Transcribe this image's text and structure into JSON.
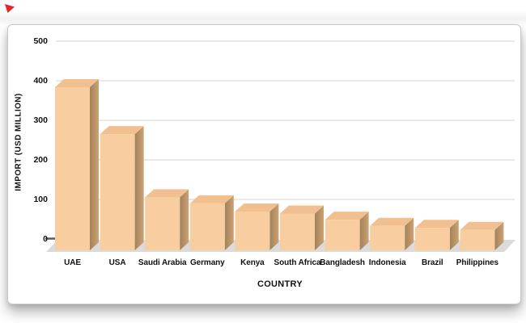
{
  "page": {
    "background": "#ffffff",
    "red_marker_color": "#e2262c"
  },
  "panel": {
    "background": "#ffffff",
    "border_color": "#c9c9c9"
  },
  "chart_data": {
    "type": "bar",
    "style": "3d-column",
    "title": "",
    "xlabel": "COUNTRY",
    "ylabel": "IMPORT (USD MILLION)",
    "categories": [
      "UAE",
      "USA",
      "Saudi Arabia",
      "Germany",
      "Kenya",
      "South Africa",
      "Bangladesh",
      "Indonesia",
      "Brazil",
      "Philippines"
    ],
    "values": [
      400,
      285,
      130,
      115,
      95,
      90,
      75,
      60,
      55,
      50
    ],
    "y_ticks": [
      0,
      100,
      200,
      300,
      400,
      500
    ],
    "ylim": [
      0,
      500
    ],
    "grid": true,
    "legend": "none",
    "colors": {
      "bar_front": "#f8cd9f",
      "bar_top": "#f2bf90",
      "bar_side_light": "#cba273",
      "bar_side_dark": "#a3825a",
      "gridline": "#e2e2e2",
      "floor": "#dbdbdb",
      "zero_dash": "#5a5a5a",
      "text": "#111111"
    }
  }
}
